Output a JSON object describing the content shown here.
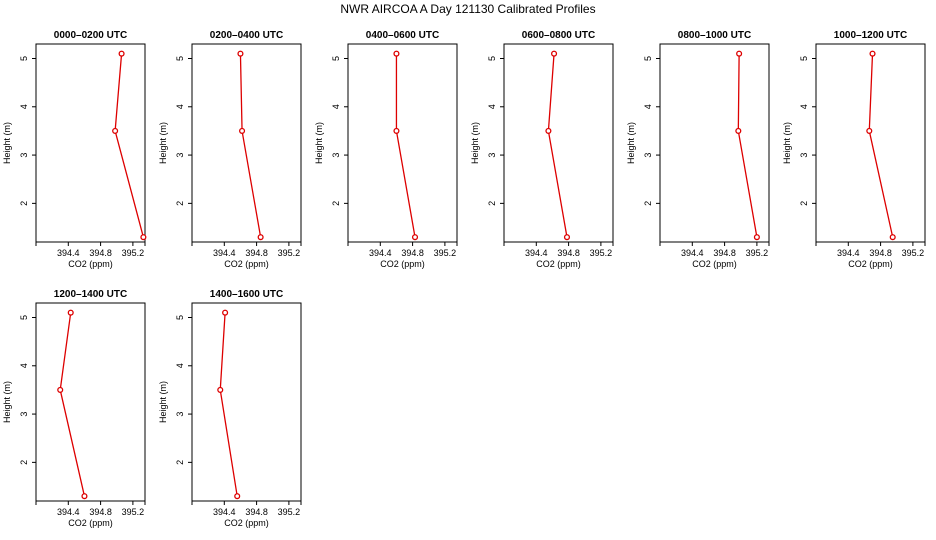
{
  "figure": {
    "title": "NWR AIRCOA A  Day 121130  Calibrated Profiles"
  },
  "chart_data": [
    {
      "type": "line",
      "title": "0000–0200 UTC",
      "xlabel": "CO2 (ppm)",
      "ylabel": "Height (m)",
      "xlim": [
        394.0,
        395.35
      ],
      "ylim": [
        1.2,
        5.3
      ],
      "xticks": [
        394.4,
        394.8,
        395.2
      ],
      "yticks": [
        2,
        3,
        4,
        5
      ],
      "x": [
        395.06,
        394.98,
        395.33
      ],
      "y": [
        5.1,
        3.5,
        1.3
      ],
      "line_color": "#dd0000",
      "marker_color": "#dd0000",
      "grid": false,
      "legend": "none"
    },
    {
      "type": "line",
      "title": "0200–0400 UTC",
      "xlabel": "CO2 (ppm)",
      "ylabel": "Height (m)",
      "xlim": [
        394.0,
        395.35
      ],
      "ylim": [
        1.2,
        5.3
      ],
      "xticks": [
        394.4,
        394.8,
        395.2
      ],
      "yticks": [
        2,
        3,
        4,
        5
      ],
      "x": [
        394.6,
        394.62,
        394.85
      ],
      "y": [
        5.1,
        3.5,
        1.3
      ],
      "line_color": "#dd0000",
      "marker_color": "#dd0000",
      "grid": false,
      "legend": "none"
    },
    {
      "type": "line",
      "title": "0400–0600 UTC",
      "xlabel": "CO2 (ppm)",
      "ylabel": "Height (m)",
      "xlim": [
        394.0,
        395.35
      ],
      "ylim": [
        1.2,
        5.3
      ],
      "xticks": [
        394.4,
        394.8,
        395.2
      ],
      "yticks": [
        2,
        3,
        4,
        5
      ],
      "x": [
        394.6,
        394.6,
        394.83
      ],
      "y": [
        5.1,
        3.5,
        1.3
      ],
      "line_color": "#dd0000",
      "marker_color": "#dd0000",
      "grid": false,
      "legend": "none"
    },
    {
      "type": "line",
      "title": "0600–0800 UTC",
      "xlabel": "CO2 (ppm)",
      "ylabel": "Height (m)",
      "xlim": [
        394.0,
        395.35
      ],
      "ylim": [
        1.2,
        5.3
      ],
      "xticks": [
        394.4,
        394.8,
        395.2
      ],
      "yticks": [
        2,
        3,
        4,
        5
      ],
      "x": [
        394.62,
        394.55,
        394.78
      ],
      "y": [
        5.1,
        3.5,
        1.3
      ],
      "line_color": "#dd0000",
      "marker_color": "#dd0000",
      "grid": false,
      "legend": "none"
    },
    {
      "type": "line",
      "title": "0800–1000 UTC",
      "xlabel": "CO2 (ppm)",
      "ylabel": "Height (m)",
      "xlim": [
        394.0,
        395.35
      ],
      "ylim": [
        1.2,
        5.3
      ],
      "xticks": [
        394.4,
        394.8,
        395.2
      ],
      "yticks": [
        2,
        3,
        4,
        5
      ],
      "x": [
        394.98,
        394.97,
        395.2
      ],
      "y": [
        5.1,
        3.5,
        1.3
      ],
      "line_color": "#dd0000",
      "marker_color": "#dd0000",
      "grid": false,
      "legend": "none"
    },
    {
      "type": "line",
      "title": "1000–1200 UTC",
      "xlabel": "CO2 (ppm)",
      "ylabel": "Height (m)",
      "xlim": [
        394.0,
        395.35
      ],
      "ylim": [
        1.2,
        5.3
      ],
      "xticks": [
        394.4,
        394.8,
        395.2
      ],
      "yticks": [
        2,
        3,
        4,
        5
      ],
      "x": [
        394.7,
        394.66,
        394.95
      ],
      "y": [
        5.1,
        3.5,
        1.3
      ],
      "line_color": "#dd0000",
      "marker_color": "#dd0000",
      "grid": false,
      "legend": "none"
    },
    {
      "type": "line",
      "title": "1200–1400 UTC",
      "xlabel": "CO2 (ppm)",
      "ylabel": "Height (m)",
      "xlim": [
        394.0,
        395.35
      ],
      "ylim": [
        1.2,
        5.3
      ],
      "xticks": [
        394.4,
        394.8,
        395.2
      ],
      "yticks": [
        2,
        3,
        4,
        5
      ],
      "x": [
        394.43,
        394.3,
        394.6
      ],
      "y": [
        5.1,
        3.5,
        1.3
      ],
      "line_color": "#dd0000",
      "marker_color": "#dd0000",
      "grid": false,
      "legend": "none"
    },
    {
      "type": "line",
      "title": "1400–1600 UTC",
      "xlabel": "CO2 (ppm)",
      "ylabel": "Height (m)",
      "xlim": [
        394.0,
        395.35
      ],
      "ylim": [
        1.2,
        5.3
      ],
      "xticks": [
        394.4,
        394.8,
        395.2
      ],
      "yticks": [
        2,
        3,
        4,
        5
      ],
      "x": [
        394.41,
        394.35,
        394.56
      ],
      "y": [
        5.1,
        3.5,
        1.3
      ],
      "line_color": "#dd0000",
      "marker_color": "#dd0000",
      "grid": false,
      "legend": "none"
    }
  ]
}
